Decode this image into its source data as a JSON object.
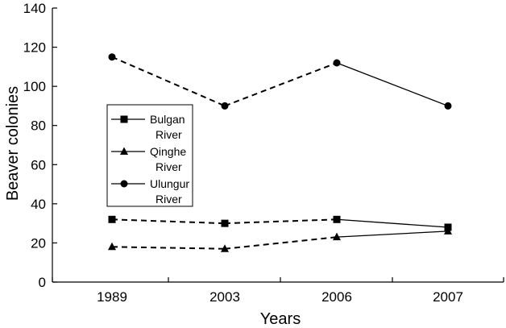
{
  "chart_data": {
    "type": "line",
    "title": "",
    "xlabel": "Years",
    "ylabel": "Beaver colonies",
    "categories": [
      "1989",
      "2003",
      "2006",
      "2007"
    ],
    "ylim": [
      0,
      140
    ],
    "yticks": [
      "0",
      "20",
      "40",
      "60",
      "80",
      "100",
      "120",
      "140"
    ],
    "grid": false,
    "legend_position": "middle-left",
    "line_style_note": "segments 1989-2003 and 2003-2006 dashed; 2006-2007 solid",
    "series": [
      {
        "name": "Bulgan River",
        "name_lines": [
          "Bulgan",
          "River"
        ],
        "marker": "square",
        "values": [
          32,
          30,
          32,
          28
        ]
      },
      {
        "name": "Qinghe River",
        "name_lines": [
          "Qinghe",
          "River"
        ],
        "marker": "triangle",
        "values": [
          18,
          17,
          23,
          26
        ]
      },
      {
        "name": "Ulungur River",
        "name_lines": [
          "Ulungur",
          "River"
        ],
        "marker": "circle",
        "values": [
          115,
          90,
          112,
          90
        ]
      }
    ]
  }
}
